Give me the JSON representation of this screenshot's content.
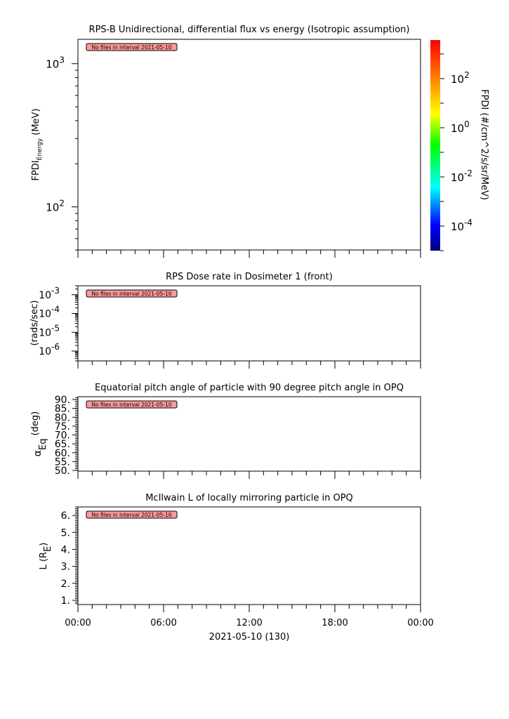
{
  "chart_data": [
    {
      "type": "heatmap",
      "title": "RPS-B  Unidirectional, differential flux vs energy (Isotropic assumption)",
      "ylabel": "FPDI",
      "ylabel_sub": "Energy",
      "ylabel_unit": " (MeV)",
      "yscale": "log",
      "ylim": [
        50,
        1480
      ],
      "yticks": [
        {
          "value": 100,
          "base": "10",
          "exp": "2"
        },
        {
          "value": 1000,
          "base": "10",
          "exp": "3"
        }
      ],
      "annotation": "No files in interval 2021-05-10",
      "colorbar": {
        "label": "FPDI (#/cm^2/s/sr/MeV)",
        "scale": "log",
        "range": [
          1e-05,
          3700
        ],
        "ticks": [
          {
            "value": 100,
            "base": "10",
            "exp": "2"
          },
          {
            "value": 1,
            "base": "10",
            "exp": "0"
          },
          {
            "value": 0.01,
            "base": "10",
            "exp": "-2"
          },
          {
            "value": 0.0001,
            "base": "10",
            "exp": "-4"
          }
        ],
        "colormap": "rainbow"
      }
    },
    {
      "type": "line",
      "title": "RPS  Dose rate in Dosimeter 1 (front)",
      "ylabel": "(rads/sec)",
      "yscale": "log",
      "ylim": [
        3e-07,
        0.003
      ],
      "yticks": [
        {
          "value": 0.001,
          "base": "10",
          "exp": "-3"
        },
        {
          "value": 0.0001,
          "base": "10",
          "exp": "-4"
        },
        {
          "value": 1e-05,
          "base": "10",
          "exp": "-5"
        },
        {
          "value": 1e-06,
          "base": "10",
          "exp": "-6"
        }
      ],
      "annotation": "No files in interval 2021-05-10"
    },
    {
      "type": "line",
      "title": "Equatorial pitch angle of particle with 90 degree pitch angle in OPQ",
      "ylabel": "α",
      "ylabel_sub": "Eq",
      "ylabel_unit": " (deg)",
      "yscale": "linear",
      "ylim": [
        49.6,
        91.6
      ],
      "yticks": [
        "90.",
        "85.",
        "80.",
        "75.",
        "70.",
        "65.",
        "60.",
        "55.",
        "50."
      ],
      "annotation": "No files in interval 2021-05-10"
    },
    {
      "type": "line",
      "title": "McIlwain L of locally mirroring particle in OPQ",
      "ylabel": "L (R",
      "ylabel_sub": "E",
      "ylabel_unit": ")",
      "yscale": "linear",
      "ylim": [
        0.75,
        6.5
      ],
      "yticks": [
        "6.",
        "5.",
        "4.",
        "3.",
        "2.",
        "1."
      ],
      "annotation": "No files in interval 2021-05-10"
    }
  ],
  "xaxis": {
    "ticklabels": [
      "00:00",
      "06:00",
      "12:00",
      "18:00",
      "00:00"
    ],
    "range_hours": [
      0,
      24
    ],
    "label": "2021-05-10 (130)"
  },
  "colors": {
    "annotation_bg": "#ff9999",
    "axis": "#000000"
  }
}
